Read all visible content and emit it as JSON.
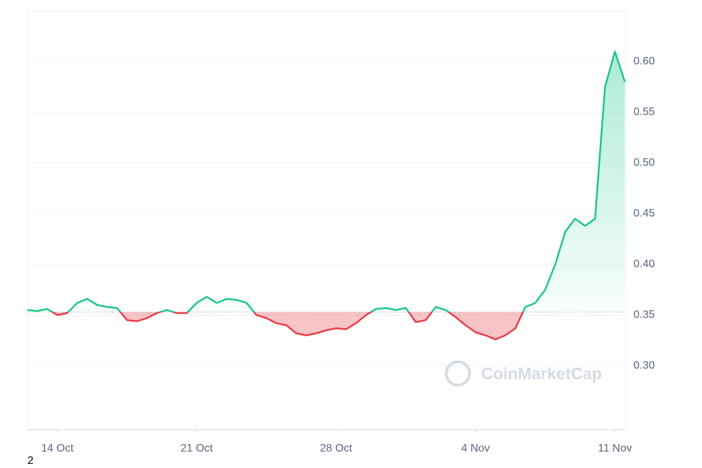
{
  "chart_data": {
    "type": "line",
    "x": [
      0,
      0.5,
      1,
      1.5,
      2,
      2.5,
      3,
      3.5,
      4,
      4.5,
      5,
      5.5,
      6,
      6.5,
      7,
      7.5,
      8,
      8.5,
      9,
      9.5,
      10,
      10.5,
      11,
      11.5,
      12,
      12.5,
      13,
      13.5,
      14,
      14.5,
      15,
      15.5,
      16,
      16.5,
      17,
      17.5,
      18,
      18.5,
      19,
      19.5,
      20,
      20.5,
      21,
      21.5,
      22,
      22.5,
      23,
      23.5,
      24,
      24.5,
      25,
      25.5,
      26,
      26.5,
      27,
      27.5,
      28,
      28.5,
      29,
      29.5,
      30
    ],
    "series": [
      {
        "values": [
          0.355,
          0.354,
          0.356,
          0.35,
          0.352,
          0.362,
          0.366,
          0.36,
          0.358,
          0.357,
          0.345,
          0.344,
          0.347,
          0.352,
          0.355,
          0.352,
          0.352,
          0.362,
          0.368,
          0.362,
          0.366,
          0.365,
          0.362,
          0.35,
          0.347,
          0.342,
          0.34,
          0.332,
          0.33,
          0.332,
          0.335,
          0.337,
          0.336,
          0.342,
          0.35,
          0.356,
          0.357,
          0.355,
          0.357,
          0.343,
          0.345,
          0.358,
          0.355,
          0.348,
          0.34,
          0.333,
          0.33,
          0.326,
          0.33,
          0.337,
          0.358,
          0.362,
          0.375,
          0.4,
          0.432,
          0.445,
          0.438,
          0.445,
          0.575,
          0.61,
          0.58
        ]
      }
    ],
    "baseline": 0.353,
    "colors": {
      "up": "#16c784",
      "down": "#ea3943"
    },
    "xlim": [
      0,
      30.05
    ],
    "xticks": [
      {
        "value": 1.5,
        "label": "14 Oct"
      },
      {
        "value": 8.5,
        "label": "21 Oct"
      },
      {
        "value": 15.5,
        "label": "28 Oct"
      },
      {
        "value": 22.5,
        "label": "4 Nov"
      },
      {
        "value": 29.5,
        "label": "11 Nov"
      }
    ],
    "ylim": [
      0.237,
      0.65
    ],
    "yticks": [
      {
        "value": 0.3,
        "label": "0.30"
      },
      0.35,
      {
        "value": 0.4,
        "label": "0.40"
      },
      0.45,
      {
        "value": 0.5,
        "label": "0.50"
      },
      0.55,
      {
        "value": 0.6,
        "label": "0.60"
      }
    ],
    "grid": true,
    "watermark": "CoinMarketCap"
  },
  "footnote": "2"
}
